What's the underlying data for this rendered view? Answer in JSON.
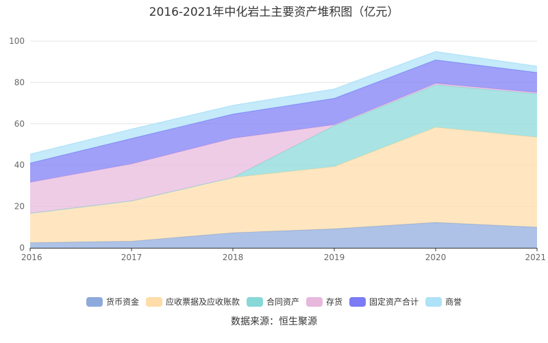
{
  "chart_data": {
    "type": "area",
    "stacked": true,
    "title": "2016-2021年中化岩土主要资产堆积图（亿元）",
    "categories": [
      "2016",
      "2017",
      "2018",
      "2019",
      "2020",
      "2021"
    ],
    "y_ticks": [
      "0",
      "20",
      "40",
      "60",
      "80",
      "100"
    ],
    "ylim": [
      0,
      100
    ],
    "xlabel": "",
    "ylabel": "",
    "grid": true,
    "legend_position": "bottom",
    "series": [
      {
        "name": "货币资金",
        "color": "#8eaadc",
        "values": [
          2.5,
          3.2,
          7.3,
          9.2,
          12.3,
          10.0
        ]
      },
      {
        "name": "应收票据及应收账款",
        "color": "#ffdca8",
        "values": [
          14.2,
          19.5,
          26.7,
          30.1,
          46.0,
          43.5
        ]
      },
      {
        "name": "合同资产",
        "color": "#88d8d8",
        "values": [
          0,
          0,
          0,
          19.8,
          20.5,
          21.0
        ]
      },
      {
        "name": "存货",
        "color": "#e8b8dc",
        "values": [
          15.0,
          17.9,
          19.0,
          0.4,
          0.7,
          0.6
        ]
      },
      {
        "name": "固定资产合计",
        "color": "#7b7bf5",
        "values": [
          9.3,
          12.3,
          11.7,
          12.8,
          11.4,
          9.7
        ]
      },
      {
        "name": "商誉",
        "color": "#aee2f8",
        "values": [
          4.3,
          4.5,
          4.2,
          4.5,
          4.0,
          3.0
        ]
      }
    ]
  },
  "source": "数据来源：恒生聚源"
}
